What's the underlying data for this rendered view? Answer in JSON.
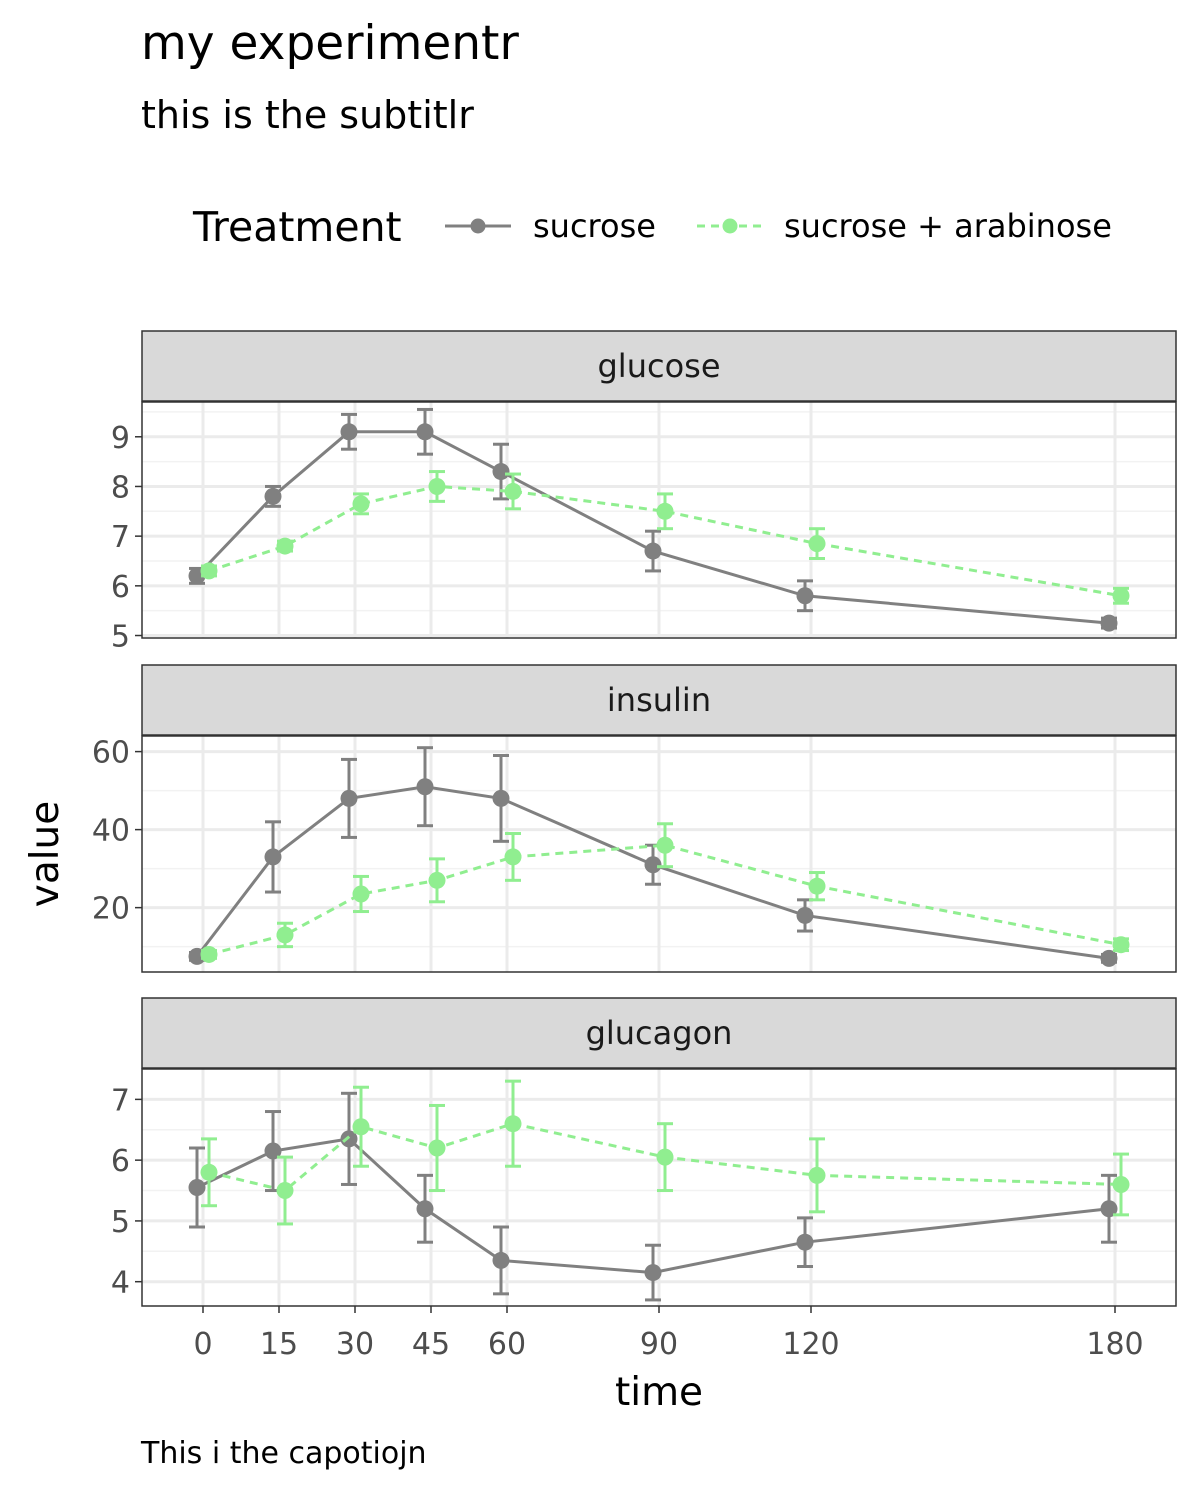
{
  "chart_data": {
    "type": "line",
    "title": "my experimentr",
    "subtitle": "this is the subtitlr",
    "caption": "This i the capotiojn",
    "xlabel": "time",
    "ylabel": "value",
    "x": [
      0,
      15,
      30,
      45,
      60,
      90,
      120,
      180
    ],
    "x_tick_labels": [
      "0",
      "15",
      "30",
      "45",
      "60",
      "90",
      "120",
      "180"
    ],
    "legend": {
      "title": "Treatment",
      "position": "top",
      "entries": [
        "sucrose",
        "sucrose + arabinose"
      ]
    },
    "grid": true,
    "series_styles": [
      {
        "name": "sucrose",
        "color": "#808080",
        "line": "solid"
      },
      {
        "name": "sucrose + arabinose",
        "color": "#90EE90",
        "line": "dashed"
      }
    ],
    "facets": [
      {
        "label": "glucose",
        "ylim": [
          4.95,
          9.7
        ],
        "y_ticks": [
          5,
          6,
          7,
          8,
          9
        ],
        "series": [
          {
            "name": "sucrose",
            "values": [
              6.2,
              7.8,
              9.1,
              9.1,
              8.3,
              6.7,
              5.8,
              5.25
            ],
            "errors": [
              0.15,
              0.2,
              0.35,
              0.45,
              0.55,
              0.4,
              0.3,
              0.1
            ]
          },
          {
            "name": "sucrose + arabinose",
            "values": [
              6.3,
              6.8,
              7.65,
              8.0,
              7.9,
              7.5,
              6.85,
              5.8
            ],
            "errors": [
              0.1,
              0.1,
              0.2,
              0.3,
              0.35,
              0.35,
              0.3,
              0.15
            ]
          }
        ]
      },
      {
        "label": "insulin",
        "ylim": [
          3.5,
          64
        ],
        "y_ticks": [
          20,
          40,
          60
        ],
        "series": [
          {
            "name": "sucrose",
            "values": [
              7.5,
              33,
              48,
              51,
              48,
              31,
              18,
              7
            ],
            "errors": [
              1,
              9,
              10,
              10,
              11,
              5,
              4,
              1
            ]
          },
          {
            "name": "sucrose + arabinose",
            "values": [
              8,
              13,
              23.5,
              27,
              33,
              36,
              25.5,
              10.5
            ],
            "errors": [
              1,
              3,
              4.5,
              5.5,
              6,
              5.5,
              3.5,
              1.5
            ]
          }
        ]
      },
      {
        "label": "glucagon",
        "ylim": [
          3.6,
          7.5
        ],
        "y_ticks": [
          4,
          5,
          6,
          7
        ],
        "series": [
          {
            "name": "sucrose",
            "values": [
              5.55,
              6.15,
              6.35,
              5.2,
              4.35,
              4.15,
              4.65,
              5.2
            ],
            "errors": [
              0.65,
              0.65,
              0.75,
              0.55,
              0.55,
              0.45,
              0.4,
              0.55
            ]
          },
          {
            "name": "sucrose + arabinose",
            "values": [
              5.8,
              5.5,
              6.55,
              6.2,
              6.6,
              6.05,
              5.75,
              5.6
            ],
            "errors": [
              0.55,
              0.55,
              0.65,
              0.7,
              0.7,
              0.55,
              0.6,
              0.5
            ]
          }
        ]
      }
    ]
  }
}
